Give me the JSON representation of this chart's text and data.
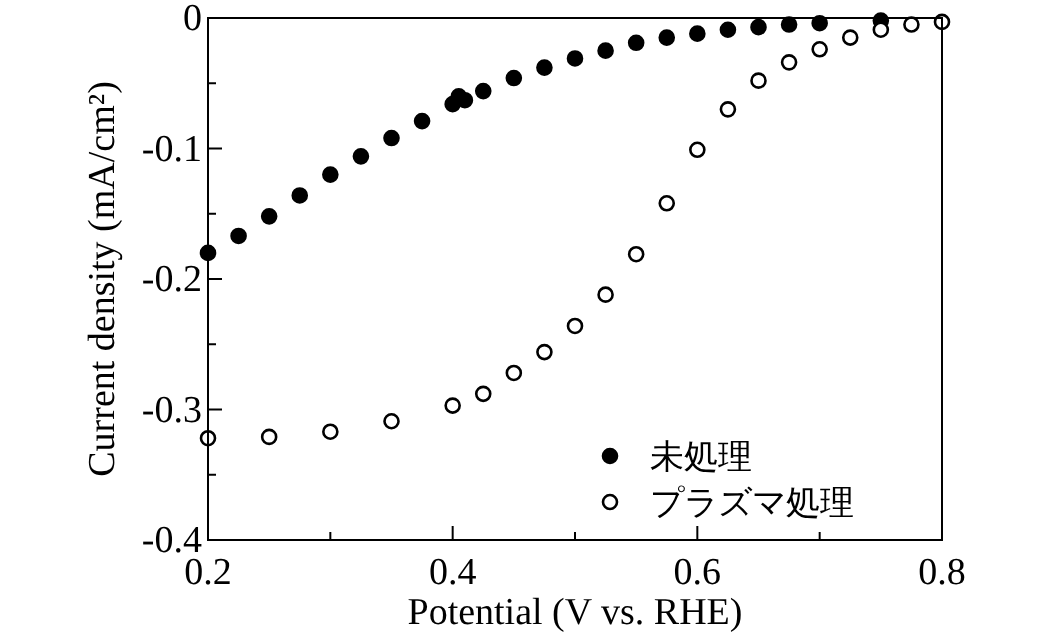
{
  "chart_data": {
    "type": "scatter",
    "xlabel": "Potential (V vs. RHE)",
    "ylabel": "Current density (mA/cm²)",
    "xlim": [
      0.2,
      0.8
    ],
    "ylim": [
      -0.4,
      0
    ],
    "xticks": [
      0.2,
      {
        "value": 0.3,
        "label": null
      },
      0.4,
      {
        "value": 0.5,
        "label": null
      },
      0.6,
      {
        "value": 0.7,
        "label": null
      },
      0.8
    ],
    "yticks": [
      0,
      {
        "value": -0.05,
        "label": null
      },
      -0.1,
      {
        "value": -0.15,
        "label": null
      },
      -0.2,
      {
        "value": -0.25,
        "label": null
      },
      -0.3,
      {
        "value": -0.35,
        "label": null
      },
      -0.4
    ],
    "marker": "circle",
    "legend": "bottom right",
    "grid": false,
    "series": [
      {
        "name": "未処理",
        "color": "#000000",
        "x": [
          0.2,
          0.225,
          0.25,
          0.275,
          0.3,
          0.325,
          0.35,
          0.375,
          0.4,
          0.405,
          0.41,
          0.425,
          0.45,
          0.475,
          0.5,
          0.525,
          0.55,
          0.575,
          0.6,
          0.625,
          0.65,
          0.675,
          0.7,
          0.75
        ],
        "values": [
          -0.18,
          -0.167,
          -0.152,
          -0.136,
          -0.12,
          -0.106,
          -0.092,
          -0.079,
          -0.066,
          -0.06,
          -0.063,
          -0.056,
          -0.046,
          -0.038,
          -0.031,
          -0.025,
          -0.019,
          -0.015,
          -0.012,
          -0.009,
          -0.007,
          -0.005,
          -0.004,
          -0.002
        ]
      },
      {
        "name": "プラズマ処理",
        "color": "#ffffff",
        "x": [
          0.2,
          0.25,
          0.3,
          0.35,
          0.4,
          0.425,
          0.45,
          0.475,
          0.5,
          0.525,
          0.55,
          0.575,
          0.6,
          0.625,
          0.65,
          0.675,
          0.7,
          0.725,
          0.75,
          0.775,
          0.8
        ],
        "values": [
          -0.322,
          -0.321,
          -0.317,
          -0.309,
          -0.297,
          -0.288,
          -0.272,
          -0.256,
          -0.236,
          -0.212,
          -0.181,
          -0.142,
          -0.101,
          -0.07,
          -0.048,
          -0.034,
          -0.024,
          -0.015,
          -0.009,
          -0.005,
          -0.003
        ]
      }
    ]
  }
}
